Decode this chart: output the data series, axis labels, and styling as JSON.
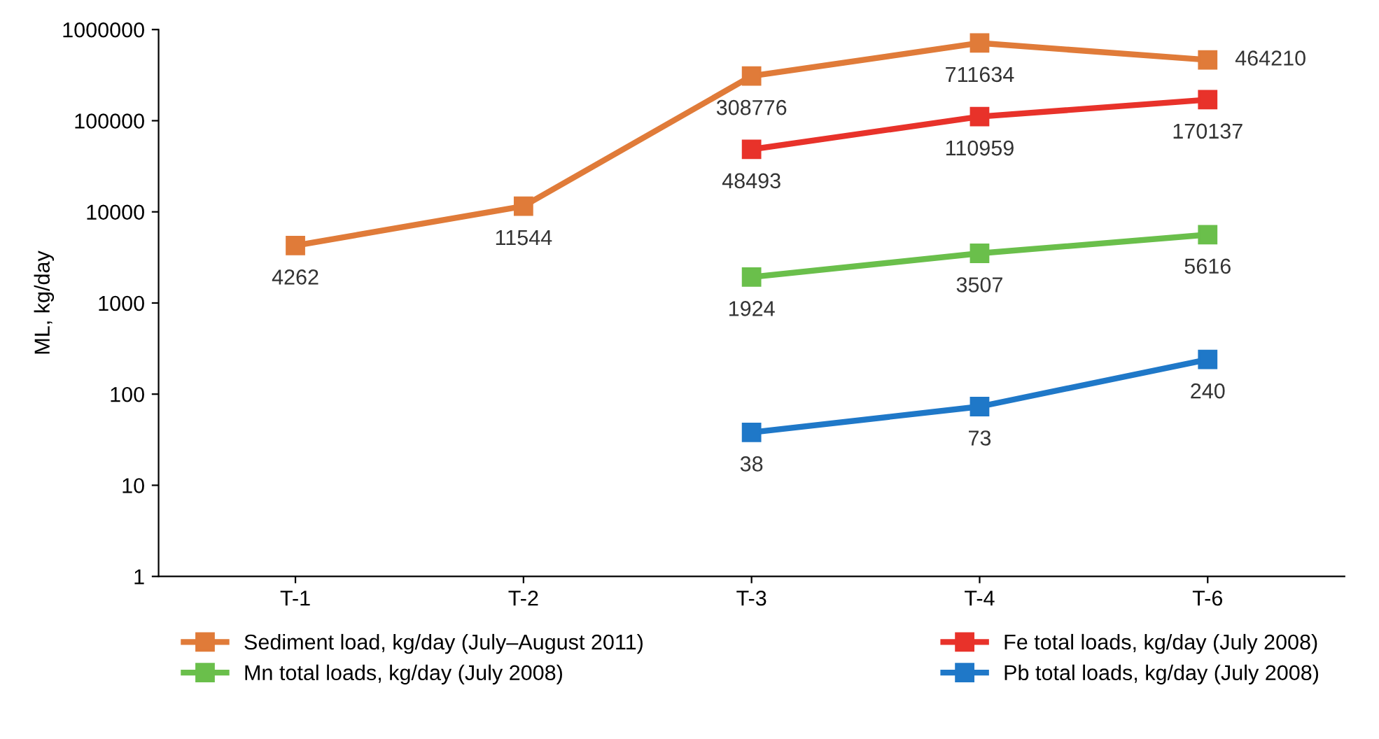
{
  "chart_data": {
    "type": "line",
    "ylabel": "ML, kg/day",
    "categories": [
      "T-1",
      "T-2",
      "T-3",
      "T-4",
      "T-6"
    ],
    "series": [
      {
        "name": "Sediment load, kg/day (July–August 2011)",
        "color": "#e07b39",
        "values": [
          4262,
          11544,
          308776,
          711634,
          464210
        ]
      },
      {
        "name": "Mn total loads, kg/day (July 2008)",
        "color": "#6abf4b",
        "values": [
          null,
          null,
          1924,
          3507,
          5616
        ]
      },
      {
        "name": "Fe total loads, kg/day (July 2008)",
        "color": "#e8322a",
        "values": [
          null,
          null,
          48493,
          110959,
          170137
        ]
      },
      {
        "name": "Pb total loads, kg/day (July 2008)",
        "color": "#1f78c8",
        "values": [
          null,
          null,
          38,
          73,
          240
        ]
      }
    ],
    "log": "y",
    "ylim": [
      1,
      1000000
    ],
    "yticks": [
      1,
      10,
      100,
      1000,
      10000,
      100000,
      1000000
    ],
    "grid": false,
    "legend": "bottom",
    "marker": "square",
    "line_style": "solid",
    "data_labels": true
  }
}
